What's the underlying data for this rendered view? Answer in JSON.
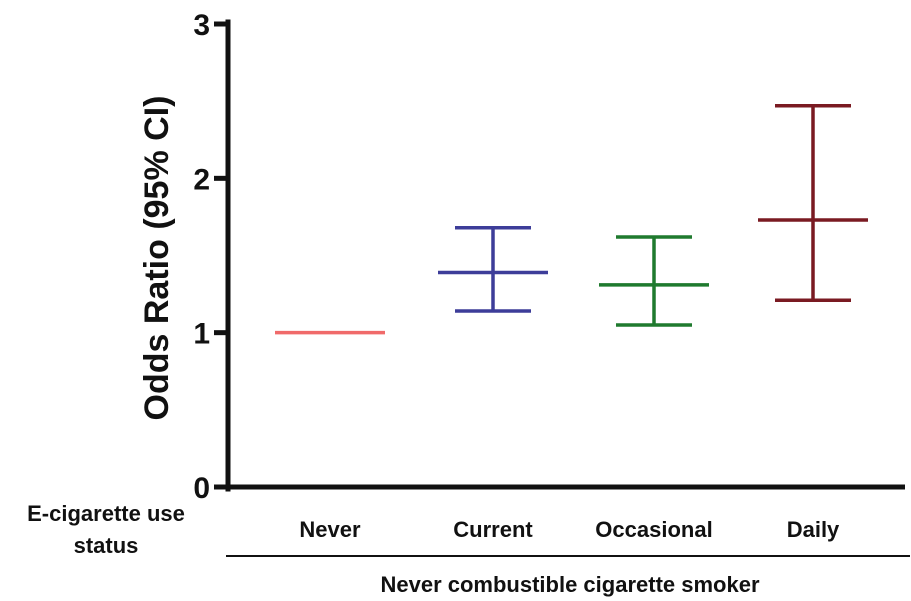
{
  "chart_data": {
    "type": "errorbar",
    "title": "",
    "ylabel": "Odds Ratio (95% CI)",
    "ylim": [
      0,
      3
    ],
    "yticks": [
      0,
      1,
      2,
      3
    ],
    "grid": false,
    "row_label_lines": [
      "E-cigarette use",
      "status"
    ],
    "group_label": "Never combustible cigarette smoker",
    "categories": [
      "Never",
      "Current",
      "Occasional",
      "Daily"
    ],
    "series": [
      {
        "category": "Never",
        "or": 1.0,
        "ci_low": 1.0,
        "ci_high": 1.0,
        "color": "#f06a6a"
      },
      {
        "category": "Current",
        "or": 1.39,
        "ci_low": 1.14,
        "ci_high": 1.68,
        "color": "#3d3d99"
      },
      {
        "category": "Occasional",
        "or": 1.31,
        "ci_low": 1.05,
        "ci_high": 1.62,
        "color": "#1f7a2e"
      },
      {
        "category": "Daily",
        "or": 1.73,
        "ci_low": 1.21,
        "ci_high": 2.47,
        "color": "#7a1a22"
      }
    ]
  }
}
